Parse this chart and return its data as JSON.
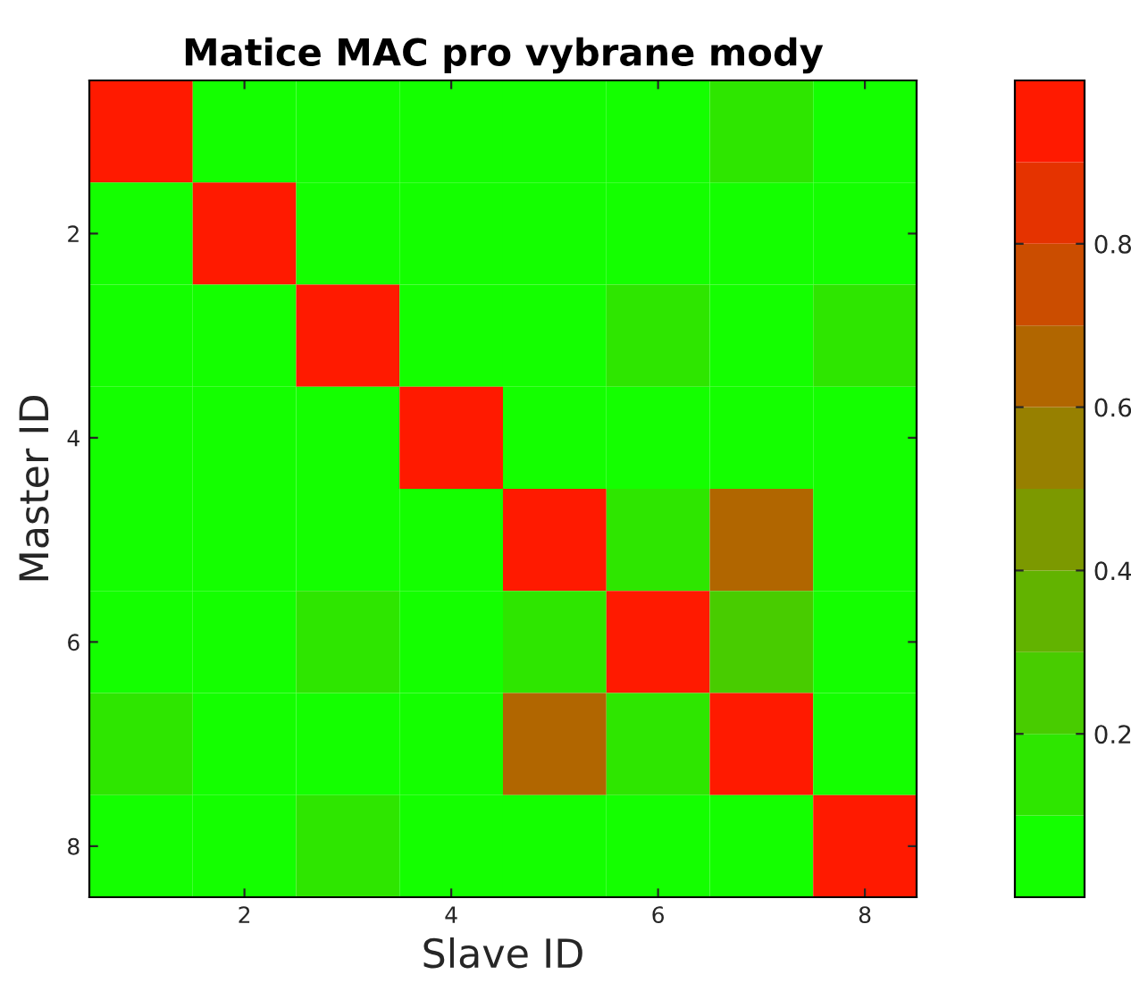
{
  "chart_data": {
    "type": "heatmap",
    "title": "Matice MAC pro vybrane mody",
    "xlabel": "Slave ID",
    "ylabel": "Master ID",
    "categories": [
      null,
      "2",
      null,
      "4",
      null,
      "6",
      null,
      "8"
    ],
    "y_categories": [
      null,
      "2",
      null,
      "4",
      null,
      "6",
      null,
      "8"
    ],
    "cells": [
      [
        1,
        0.05,
        0.05,
        0.05,
        0.05,
        0.05,
        0.15,
        0.05
      ],
      [
        0.05,
        1,
        0.05,
        0.05,
        0.05,
        0.05,
        0.05,
        0.05
      ],
      [
        0.05,
        0.05,
        1,
        0.05,
        0.05,
        0.15,
        0.05,
        0.15
      ],
      [
        0.05,
        0.05,
        0.05,
        1,
        0.05,
        0.05,
        0.05,
        0.05
      ],
      [
        0.05,
        0.05,
        0.05,
        0.05,
        1,
        0.15,
        0.65,
        0.05
      ],
      [
        0.05,
        0.05,
        0.15,
        0.05,
        0.15,
        1,
        0.25,
        0.05
      ],
      [
        0.15,
        0.05,
        0.05,
        0.05,
        0.65,
        0.15,
        1,
        0.05
      ],
      [
        0.05,
        0.05,
        0.15,
        0.05,
        0.05,
        0.05,
        0.05,
        1
      ]
    ],
    "clim": [
      0,
      1
    ],
    "cticks": [
      0.2,
      0.4,
      0.6,
      0.8
    ]
  }
}
